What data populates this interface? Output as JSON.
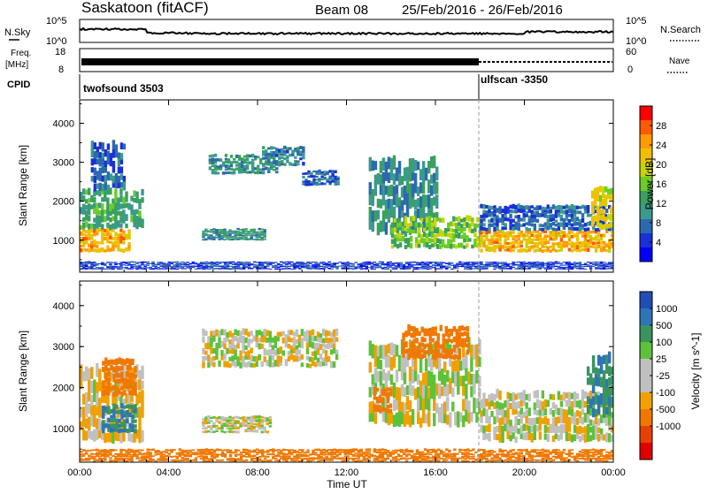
{
  "header": {
    "station": "Saskatoon (fitACF)",
    "beam": "Beam 08",
    "date_range": "25/Feb/2016 - 26/Feb/2016"
  },
  "top_panels": {
    "nsky_label": "N.Sky",
    "nsky_tick_high": "10^5",
    "nsky_tick_low": "10^0",
    "nsearch_label": "N.Search",
    "nsearch_tick_high": "10^5",
    "nsearch_tick_low": "10^0",
    "freq_label_1": "Freq.",
    "freq_label_2": "[MHz]",
    "freq_tick_high": "18",
    "freq_tick_low": "8",
    "nave_label": "Nave",
    "nave_tick_high": "60",
    "nave_tick_low": "0",
    "cpid_label": "CPID",
    "cpid_1": "twofsound 3503",
    "cpid_2": "ulfscan -3350"
  },
  "panels": {
    "power_ylabel": "Slant Range [km]",
    "velocity_ylabel": "Slant Range [km]",
    "y_ticks": [
      "4000",
      "3000",
      "2000",
      "1000"
    ],
    "x_ticks": [
      "00:00",
      "04:00",
      "08:00",
      "12:00",
      "16:00",
      "20:00",
      "00:00"
    ],
    "xlabel": "Time UT"
  },
  "power_colorbar": {
    "label": "Power [dB]",
    "ticks": [
      "28",
      "24",
      "20",
      "16",
      "12",
      "8",
      "4"
    ],
    "colors": [
      "#ff0000",
      "#ff5a00",
      "#ff9a00",
      "#f0c000",
      "#c8d400",
      "#6ccc28",
      "#3aa060",
      "#3c9a8c",
      "#2c6ab0",
      "#1a30d8",
      "#0000ff"
    ]
  },
  "velocity_colorbar": {
    "label": "Velocity [m s^-1]",
    "ticks": [
      "1000",
      "500",
      "100",
      "25",
      "-25",
      "-100",
      "-500",
      "-1000"
    ],
    "colors": [
      "#1f4fb4",
      "#2e74b8",
      "#3a9460",
      "#5cc23a",
      "#c0c0c0",
      "#c0c0c0",
      "#f0a000",
      "#f07800",
      "#e84000",
      "#e00000"
    ]
  },
  "chart_data": [
    {
      "type": "heatmap",
      "title": "Power",
      "xlabel": "Time UT",
      "ylabel": "Slant Range [km]",
      "colorbar_label": "Power [dB]",
      "xlim": [
        "00:00",
        "00:00"
      ],
      "ylim": [
        180,
        4600
      ],
      "colorbar_range": [
        0,
        32
      ],
      "regions": [
        {
          "t": [
            0,
            2.2
          ],
          "range": [
            700,
            1300
          ],
          "value": 24
        },
        {
          "t": [
            0,
            2.8
          ],
          "range": [
            1300,
            2300
          ],
          "value": 12
        },
        {
          "t": [
            0.5,
            2.0
          ],
          "range": [
            2300,
            3500
          ],
          "value": 6
        },
        {
          "t": [
            5.8,
            8.8
          ],
          "range": [
            2700,
            3200
          ],
          "value": 10
        },
        {
          "t": [
            8.2,
            10.0
          ],
          "range": [
            2900,
            3400
          ],
          "value": 8
        },
        {
          "t": [
            10.0,
            11.6
          ],
          "range": [
            2400,
            2800
          ],
          "value": 6
        },
        {
          "t": [
            5.5,
            8.3
          ],
          "range": [
            1000,
            1300
          ],
          "value": 10
        },
        {
          "t": [
            13.0,
            16.0
          ],
          "range": [
            1200,
            3100
          ],
          "value": 10
        },
        {
          "t": [
            14.0,
            18.0
          ],
          "range": [
            800,
            1600
          ],
          "value": 16
        },
        {
          "t": [
            18.0,
            24.0
          ],
          "range": [
            700,
            1250
          ],
          "value": 24
        },
        {
          "t": [
            18.0,
            24.0
          ],
          "range": [
            1250,
            1900
          ],
          "value": 6
        },
        {
          "t": [
            23.0,
            24.0
          ],
          "range": [
            1300,
            2400
          ],
          "value": 20
        },
        {
          "t": [
            0,
            24.0
          ],
          "range": [
            250,
            450
          ],
          "value": 4
        }
      ]
    },
    {
      "type": "heatmap",
      "title": "Velocity",
      "xlabel": "Time UT",
      "ylabel": "Slant Range [km]",
      "colorbar_label": "Velocity [m s^-1]",
      "xlim": [
        "00:00",
        "00:00"
      ],
      "ylim": [
        180,
        4600
      ],
      "colorbar_range": [
        -1000,
        1000
      ],
      "regions": [
        {
          "t": [
            0,
            2.8
          ],
          "range": [
            700,
            2500
          ],
          "value": -25
        },
        {
          "t": [
            1.0,
            2.5
          ],
          "range": [
            900,
            1600
          ],
          "value": 300
        },
        {
          "t": [
            1.0,
            2.5
          ],
          "range": [
            1800,
            2700
          ],
          "value": -300
        },
        {
          "t": [
            5.5,
            11.5
          ],
          "range": [
            2500,
            3400
          ],
          "value": 0
        },
        {
          "t": [
            5.5,
            8.5
          ],
          "range": [
            900,
            1300
          ],
          "value": 0
        },
        {
          "t": [
            13.0,
            18.0
          ],
          "range": [
            1100,
            3100
          ],
          "value": 0
        },
        {
          "t": [
            14.5,
            17.5
          ],
          "range": [
            2700,
            3500
          ],
          "value": -400
        },
        {
          "t": [
            13.2,
            14.0
          ],
          "range": [
            1400,
            2000
          ],
          "value": -300
        },
        {
          "t": [
            18.0,
            24.0
          ],
          "range": [
            700,
            1900
          ],
          "value": 0
        },
        {
          "t": [
            22.8,
            24.0
          ],
          "range": [
            1300,
            2800
          ],
          "value": 300
        },
        {
          "t": [
            0,
            24.0
          ],
          "range": [
            200,
            500
          ],
          "value": -200
        }
      ]
    }
  ]
}
